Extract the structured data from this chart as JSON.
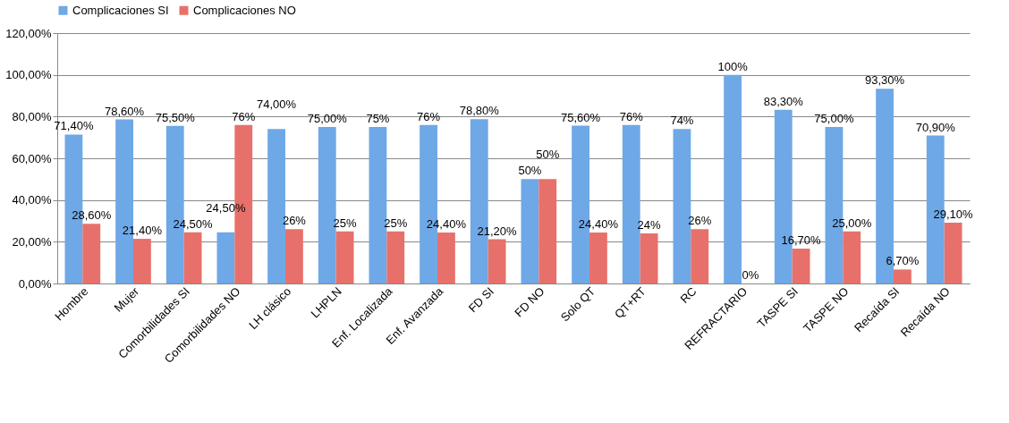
{
  "chart_data": {
    "type": "bar",
    "categories": [
      "Hombre",
      "Mujer",
      "Comorbilidades SI",
      "Comorbilidades NO",
      "LH clásico",
      "LHPLN",
      "Enf. Localizada",
      "Enf. Avanzada",
      "FD SI",
      "FD NO",
      "Solo QT",
      "QT+RT",
      "RC",
      "REFRACTARIO",
      "TASPE SI",
      "TASPE NO",
      "Recaída SI",
      "Recaída NO"
    ],
    "series": [
      {
        "name": "Complicaciones SI",
        "color": "#6fa8e6",
        "values": [
          71.4,
          78.6,
          75.5,
          24.5,
          74,
          75,
          75,
          76,
          78.8,
          50,
          75.6,
          76,
          74,
          100,
          83.3,
          75,
          93.3,
          70.9
        ],
        "value_labels": [
          "71,40%",
          "78,60%",
          "75,50%",
          "24,50%",
          "74,00%",
          "75,00%",
          "75%",
          "76%",
          "78,80%",
          "50%",
          "75,60%",
          "76%",
          "74%",
          "100%",
          "83,30%",
          "75,00%",
          "93,30%",
          "70,90%"
        ]
      },
      {
        "name": "Complicaciones NO",
        "color": "#e8706a",
        "values": [
          28.6,
          21.4,
          24.5,
          76,
          26,
          25,
          25,
          24.4,
          21.2,
          50,
          24.4,
          24,
          26,
          0,
          16.7,
          25,
          6.7,
          29.1
        ],
        "value_labels": [
          "28,60%",
          "21,40%",
          "24,50%",
          "76%",
          "26%",
          "25%",
          "25%",
          "24,40%",
          "21,20%",
          "50%",
          "24,40%",
          "24%",
          "26%",
          "0%",
          "16,70%",
          "25,00%",
          "6,70%",
          "29,10%"
        ]
      }
    ],
    "ylim": [
      0,
      120
    ],
    "yticks": [
      {
        "value": 0,
        "label": "0,00%"
      },
      {
        "value": 20,
        "label": "20,00%"
      },
      {
        "value": 40,
        "label": "40,00%"
      },
      {
        "value": 60,
        "label": "60,00%"
      },
      {
        "value": 80,
        "label": "80,00%"
      },
      {
        "value": 100,
        "label": "100,00%"
      },
      {
        "value": 120,
        "label": "120,00%"
      }
    ],
    "grid": "y",
    "legend": "top"
  }
}
